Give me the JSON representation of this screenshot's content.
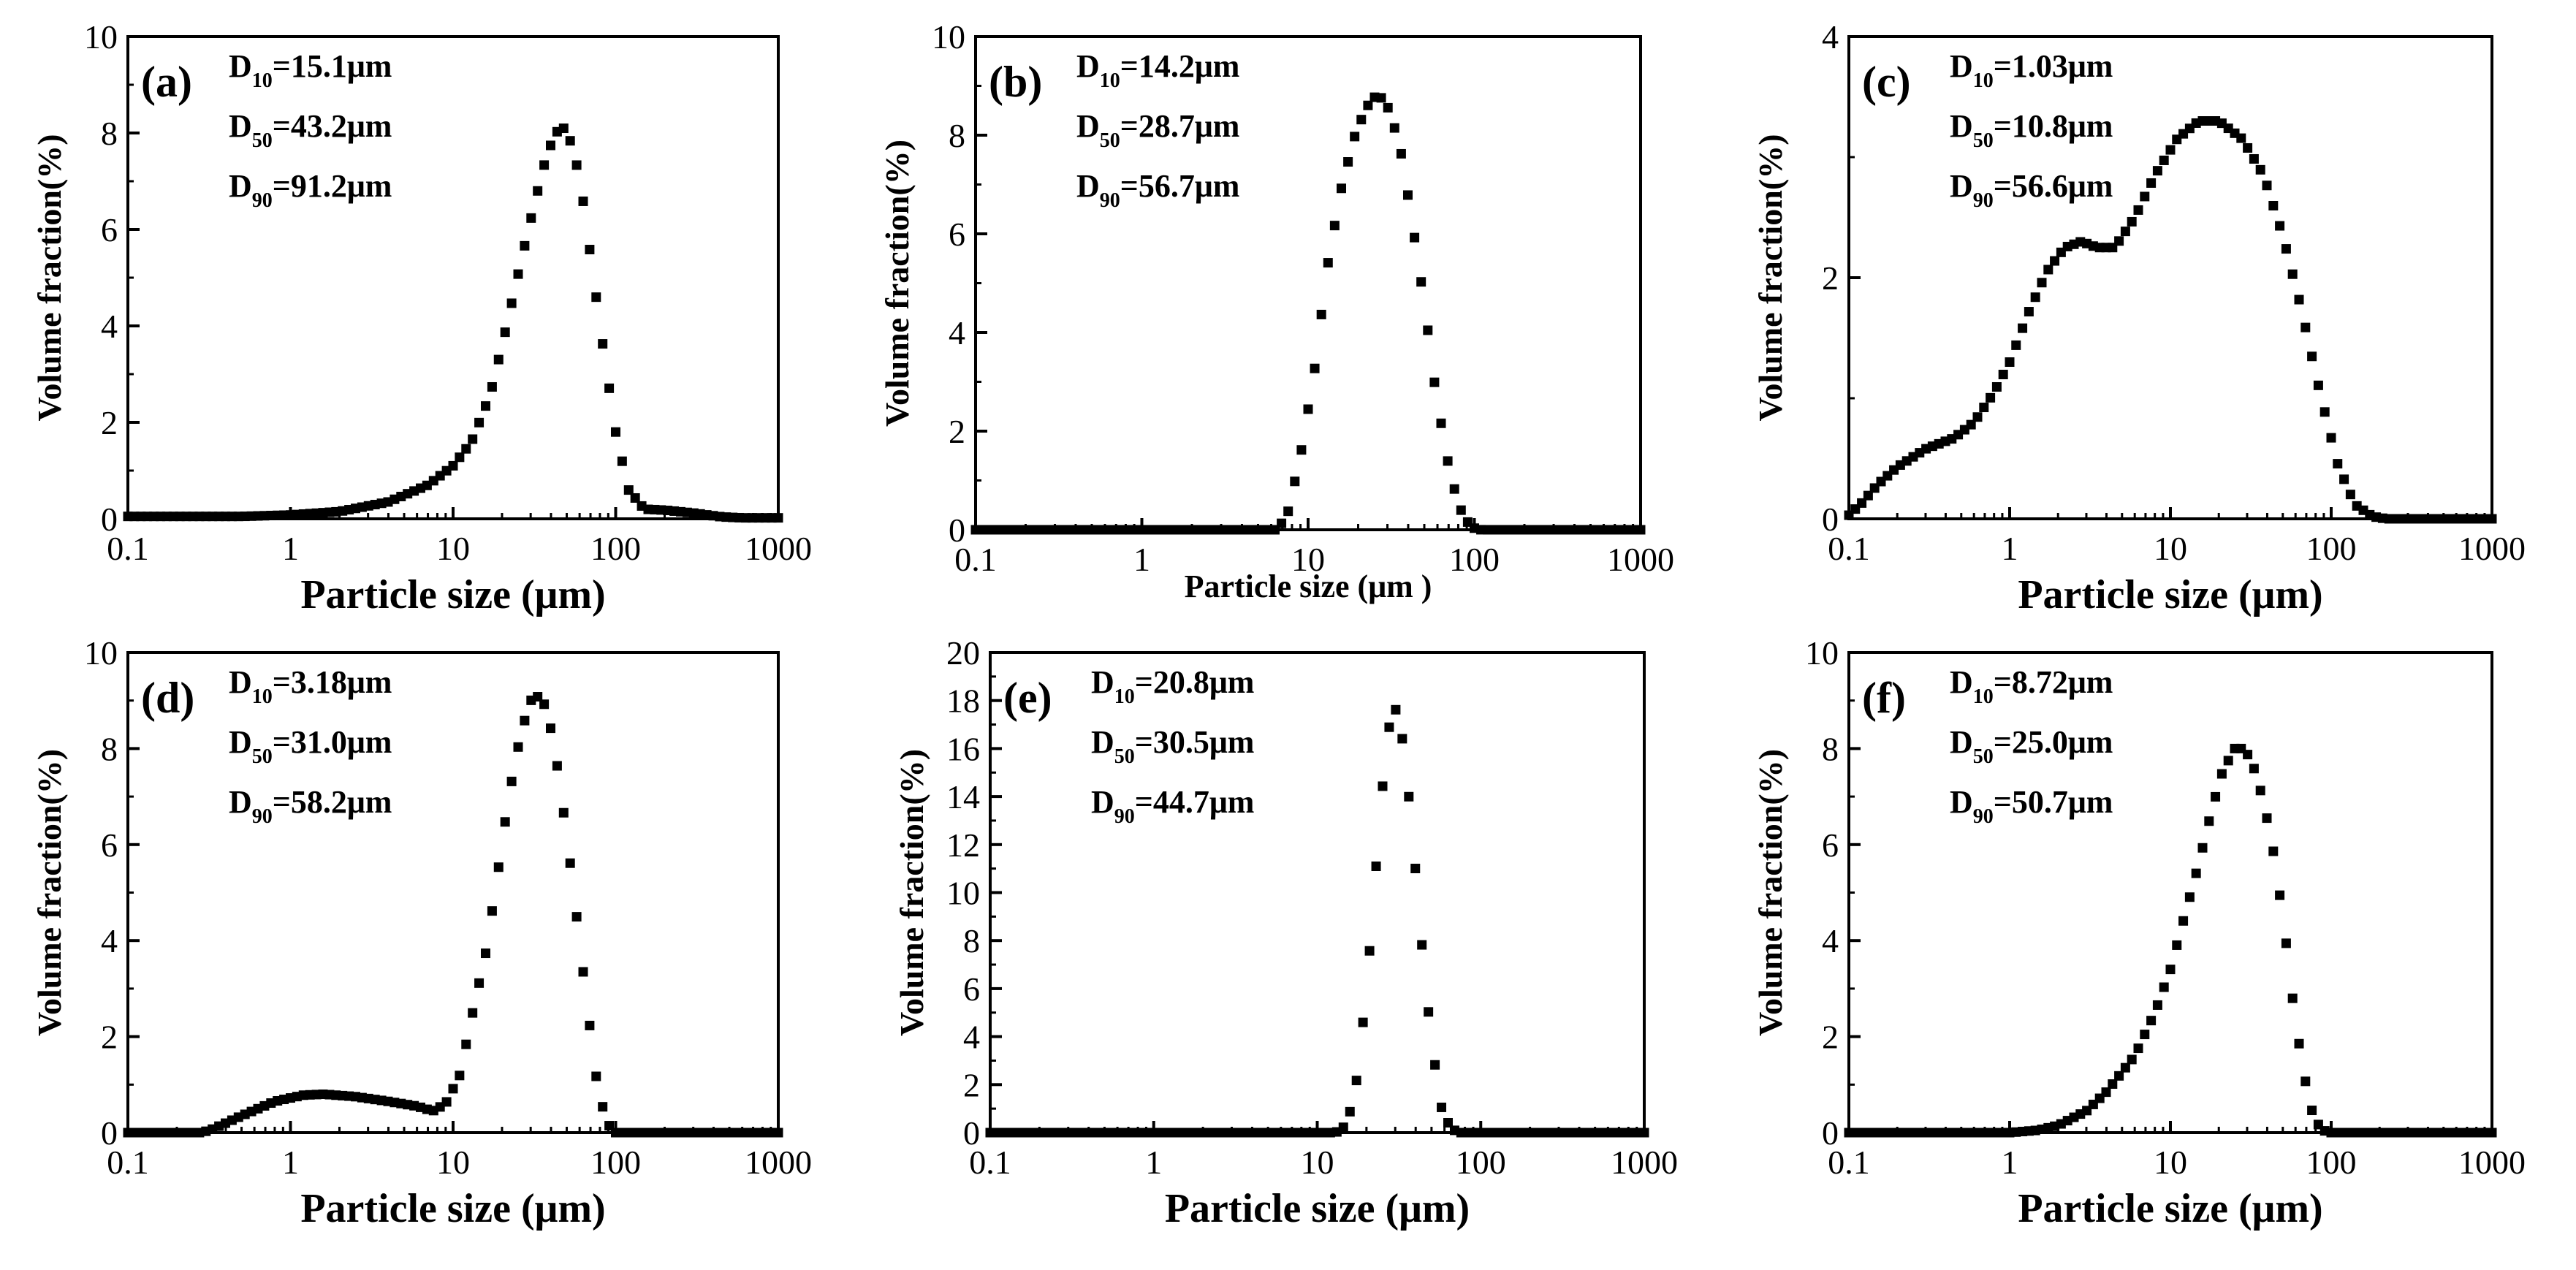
{
  "figure_title": "",
  "chart_data": [
    {
      "panel": "(a)",
      "type": "scatter",
      "title": "",
      "xlabel": "Particle size (μm)",
      "ylabel": "Volume fraction(%)",
      "xscale": "log",
      "xlim": [
        0.1,
        1000
      ],
      "ylim": [
        0,
        10
      ],
      "xticks": [
        0.1,
        1,
        10,
        100,
        1000
      ],
      "xtick_labels": [
        "0.1",
        "1",
        "10",
        "100",
        "1000"
      ],
      "yticks": [
        0,
        2,
        4,
        6,
        8,
        10
      ],
      "annotations": [
        {
          "label": "D",
          "sub": "10",
          "value": "=15.1μm"
        },
        {
          "label": "D",
          "sub": "50",
          "value": "=43.2μm"
        },
        {
          "label": "D",
          "sub": "90",
          "value": "=91.2μm"
        }
      ],
      "series": [
        {
          "name": "volume fraction",
          "x": [],
          "y": [],
          "profile": [
            [
              0.1,
              0.05
            ],
            [
              0.5,
              0.05
            ],
            [
              1,
              0.08
            ],
            [
              2,
              0.15
            ],
            [
              4,
              0.35
            ],
            [
              7,
              0.7
            ],
            [
              10,
              1.1
            ],
            [
              13,
              1.6
            ],
            [
              17,
              2.6
            ],
            [
              21,
              3.9
            ],
            [
              26,
              5.3
            ],
            [
              32,
              6.6
            ],
            [
              38,
              7.6
            ],
            [
              44,
              8.05
            ],
            [
              48,
              8.1
            ],
            [
              55,
              7.7
            ],
            [
              63,
              6.6
            ],
            [
              73,
              5.0
            ],
            [
              85,
              3.4
            ],
            [
              100,
              1.8
            ],
            [
              120,
              0.6
            ],
            [
              150,
              0.2
            ],
            [
              200,
              0.18
            ],
            [
              300,
              0.12
            ],
            [
              450,
              0.04
            ],
            [
              600,
              0.02
            ],
            [
              1000,
              0.02
            ]
          ]
        }
      ]
    },
    {
      "panel": "(b)",
      "type": "scatter",
      "title": "",
      "xlabel": "Particle size (μm )",
      "ylabel": "Volume fraction(%)",
      "xscale": "log",
      "xlim": [
        0.1,
        1000
      ],
      "ylim": [
        0,
        10
      ],
      "xticks": [
        0.1,
        1,
        10,
        100,
        1000
      ],
      "xtick_labels": [
        "0.1",
        "1",
        "10",
        "100",
        "1000"
      ],
      "yticks": [
        0,
        2,
        4,
        6,
        8,
        10
      ],
      "annotations": [
        {
          "label": "D",
          "sub": "10",
          "value": "=14.2μm"
        },
        {
          "label": "D",
          "sub": "50",
          "value": "=28.7μm"
        },
        {
          "label": "D",
          "sub": "90",
          "value": "=56.7μm"
        }
      ],
      "series": [
        {
          "name": "volume fraction",
          "x": [],
          "y": [],
          "profile": [
            [
              0.1,
              0
            ],
            [
              6.5,
              0
            ],
            [
              7.5,
              0.3
            ],
            [
              9,
              1.5
            ],
            [
              11,
              3.3
            ],
            [
              13,
              5.3
            ],
            [
              16,
              7.0
            ],
            [
              19.5,
              8.1
            ],
            [
              24,
              8.75
            ],
            [
              27,
              8.8
            ],
            [
              31,
              8.5
            ],
            [
              36,
              7.7
            ],
            [
              42,
              6.3
            ],
            [
              50,
              4.6
            ],
            [
              58,
              2.9
            ],
            [
              68,
              1.5
            ],
            [
              80,
              0.5
            ],
            [
              95,
              0.05
            ],
            [
              110,
              0
            ],
            [
              1000,
              0
            ]
          ]
        }
      ]
    },
    {
      "panel": "(c)",
      "type": "scatter",
      "title": "",
      "xlabel": "Particle size (μm)",
      "ylabel": "Volume fraction(%)",
      "xscale": "log",
      "xlim": [
        0.1,
        1000
      ],
      "ylim": [
        0,
        4
      ],
      "xticks": [
        0.1,
        1,
        10,
        100,
        1000
      ],
      "xtick_labels": [
        "0.1",
        "1",
        "10",
        "100",
        "1000"
      ],
      "yticks": [
        0,
        2,
        4
      ],
      "annotations": [
        {
          "label": "D",
          "sub": "10",
          "value": "=1.03μm"
        },
        {
          "label": "D",
          "sub": "50",
          "value": "=10.8μm"
        },
        {
          "label": "D",
          "sub": "90",
          "value": "=56.6μm"
        }
      ],
      "series": [
        {
          "name": "volume fraction",
          "x": [],
          "y": [],
          "profile": [
            [
              0.1,
              0.03
            ],
            [
              0.12,
              0.13
            ],
            [
              0.15,
              0.28
            ],
            [
              0.2,
              0.43
            ],
            [
              0.3,
              0.58
            ],
            [
              0.45,
              0.67
            ],
            [
              0.6,
              0.8
            ],
            [
              0.8,
              1.05
            ],
            [
              1,
              1.3
            ],
            [
              1.3,
              1.7
            ],
            [
              1.7,
              2.05
            ],
            [
              2.2,
              2.25
            ],
            [
              2.8,
              2.3
            ],
            [
              3.5,
              2.25
            ],
            [
              4.5,
              2.25
            ],
            [
              6,
              2.5
            ],
            [
              8,
              2.85
            ],
            [
              11,
              3.15
            ],
            [
              15,
              3.3
            ],
            [
              20,
              3.3
            ],
            [
              28,
              3.15
            ],
            [
              38,
              2.85
            ],
            [
              50,
              2.35
            ],
            [
              65,
              1.75
            ],
            [
              85,
              1.05
            ],
            [
              110,
              0.45
            ],
            [
              140,
              0.12
            ],
            [
              180,
              0.02
            ],
            [
              220,
              0
            ],
            [
              1000,
              0
            ]
          ]
        }
      ]
    },
    {
      "panel": "(d)",
      "type": "scatter",
      "title": "",
      "xlabel": "Particle size (μm)",
      "ylabel": "Volume fraction(%)",
      "xscale": "log",
      "xlim": [
        0.1,
        1000
      ],
      "ylim": [
        0,
        10
      ],
      "xticks": [
        0.1,
        1,
        10,
        100,
        1000
      ],
      "xtick_labels": [
        "0.1",
        "1",
        "10",
        "100",
        "1000"
      ],
      "yticks": [
        0,
        2,
        4,
        6,
        8,
        10
      ],
      "annotations": [
        {
          "label": "D",
          "sub": "10",
          "value": "=3.18μm"
        },
        {
          "label": "D",
          "sub": "50",
          "value": "=31.0μm"
        },
        {
          "label": "D",
          "sub": "90",
          "value": "=58.2μm"
        }
      ],
      "series": [
        {
          "name": "volume fraction",
          "x": [],
          "y": [],
          "profile": [
            [
              0.1,
              0
            ],
            [
              0.28,
              0
            ],
            [
              0.32,
              0.05
            ],
            [
              0.5,
              0.35
            ],
            [
              0.8,
              0.65
            ],
            [
              1.2,
              0.78
            ],
            [
              1.6,
              0.8
            ],
            [
              2.5,
              0.75
            ],
            [
              4,
              0.65
            ],
            [
              6,
              0.55
            ],
            [
              7.5,
              0.45
            ],
            [
              9,
              0.6
            ],
            [
              11,
              1.2
            ],
            [
              13,
              2.4
            ],
            [
              16,
              3.8
            ],
            [
              19,
              5.5
            ],
            [
              22,
              7.0
            ],
            [
              26,
              8.3
            ],
            [
              30,
              9.0
            ],
            [
              34,
              9.1
            ],
            [
              38,
              8.8
            ],
            [
              43,
              7.8
            ],
            [
              50,
              6.2
            ],
            [
              58,
              4.4
            ],
            [
              67,
              2.6
            ],
            [
              77,
              1.0
            ],
            [
              88,
              0.2
            ],
            [
              100,
              0
            ],
            [
              1000,
              0
            ]
          ]
        }
      ]
    },
    {
      "panel": "(e)",
      "type": "scatter",
      "title": "",
      "xlabel": "Particle size (μm)",
      "ylabel": "Volume fraction(%)",
      "xscale": "log",
      "xlim": [
        0.1,
        1000
      ],
      "ylim": [
        0,
        20
      ],
      "xticks": [
        0.1,
        1,
        10,
        100,
        1000
      ],
      "xtick_labels": [
        "0.1",
        "1",
        "10",
        "100",
        "1000"
      ],
      "yticks": [
        0,
        2,
        4,
        6,
        8,
        10,
        12,
        14,
        16,
        18,
        20
      ],
      "annotations": [
        {
          "label": "D",
          "sub": "10",
          "value": "=20.8μm"
        },
        {
          "label": "D",
          "sub": "50",
          "value": "=30.5μm"
        },
        {
          "label": "D",
          "sub": "90",
          "value": "=44.7μm"
        }
      ],
      "series": [
        {
          "name": "volume fraction",
          "x": [],
          "y": [],
          "profile": [
            [
              0.1,
              0
            ],
            [
              13,
              0
            ],
            [
              15,
              0.3
            ],
            [
              17,
              1.6
            ],
            [
              19,
              4.5
            ],
            [
              21.5,
              8.5
            ],
            [
              24,
              13.0
            ],
            [
              27,
              16.7
            ],
            [
              30,
              17.7
            ],
            [
              33,
              16.5
            ],
            [
              37,
              13.5
            ],
            [
              41,
              10.0
            ],
            [
              46,
              6.0
            ],
            [
              52,
              3.0
            ],
            [
              58,
              0.9
            ],
            [
              66,
              0.15
            ],
            [
              75,
              0
            ],
            [
              1000,
              0
            ]
          ]
        }
      ]
    },
    {
      "panel": "(f)",
      "type": "scatter",
      "title": "",
      "xlabel": "Particle size (μm)",
      "ylabel": "Volume fraction(%)",
      "xscale": "log",
      "xlim": [
        0.1,
        1000
      ],
      "ylim": [
        0,
        10
      ],
      "xticks": [
        0.1,
        1,
        10,
        100,
        1000
      ],
      "xtick_labels": [
        "0.1",
        "1",
        "10",
        "100",
        "1000"
      ],
      "yticks": [
        0,
        2,
        4,
        6,
        8,
        10
      ],
      "annotations": [
        {
          "label": "D",
          "sub": "10",
          "value": "=8.72μm"
        },
        {
          "label": "D",
          "sub": "50",
          "value": "=25.0μm"
        },
        {
          "label": "D",
          "sub": "90",
          "value": "=50.7μm"
        }
      ],
      "series": [
        {
          "name": "volume fraction",
          "x": [],
          "y": [],
          "profile": [
            [
              0.1,
              0
            ],
            [
              1,
              0
            ],
            [
              1.5,
              0.05
            ],
            [
              2,
              0.15
            ],
            [
              3,
              0.45
            ],
            [
              4,
              0.85
            ],
            [
              6,
              1.6
            ],
            [
              8,
              2.5
            ],
            [
              10,
              3.4
            ],
            [
              12,
              4.4
            ],
            [
              15,
              5.6
            ],
            [
              18,
              6.7
            ],
            [
              21,
              7.5
            ],
            [
              25,
              8.0
            ],
            [
              29,
              8.0
            ],
            [
              33,
              7.6
            ],
            [
              38,
              6.9
            ],
            [
              44,
              5.8
            ],
            [
              51,
              4.3
            ],
            [
              58,
              2.7
            ],
            [
              66,
              1.4
            ],
            [
              75,
              0.5
            ],
            [
              85,
              0.1
            ],
            [
              95,
              0
            ],
            [
              1000,
              0
            ]
          ]
        }
      ]
    }
  ]
}
